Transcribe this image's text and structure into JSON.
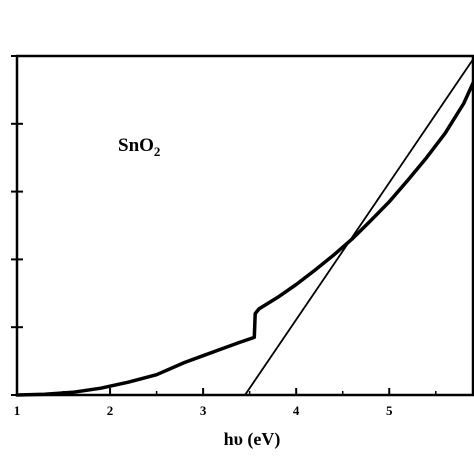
{
  "chart_data": {
    "type": "line",
    "title": "",
    "xlabel": "hυ (eV)",
    "ylabel": "",
    "annotation": {
      "text": "SnO",
      "subscript": "2"
    },
    "xlim": [
      1,
      5.9
    ],
    "ylim": [
      0,
      5
    ],
    "x_ticks": [
      "1",
      "2",
      "3",
      "4",
      "5"
    ],
    "y_ticks": [
      0,
      1,
      2,
      3,
      4,
      5
    ],
    "grid": false,
    "colors": {
      "line": "#000000",
      "axis": "#000000",
      "background": "#ffffff"
    },
    "series": [
      {
        "x": [
          1.0,
          1.3,
          1.6,
          1.9,
          2.2,
          2.5,
          2.8,
          3.0,
          3.2,
          3.4,
          3.55,
          3.56,
          3.6,
          3.8,
          4.0,
          4.2,
          4.4,
          4.6,
          4.8,
          5.0,
          5.2,
          5.4,
          5.6,
          5.8,
          5.9
        ],
        "y": [
          0.0,
          0.01,
          0.04,
          0.1,
          0.19,
          0.3,
          0.48,
          0.58,
          0.68,
          0.78,
          0.85,
          1.2,
          1.27,
          1.44,
          1.63,
          1.84,
          2.06,
          2.3,
          2.57,
          2.85,
          3.17,
          3.5,
          3.86,
          4.3,
          4.6
        ]
      },
      {
        "x": [
          3.45,
          5.9
        ],
        "y": [
          0.0,
          4.95
        ]
      }
    ]
  }
}
